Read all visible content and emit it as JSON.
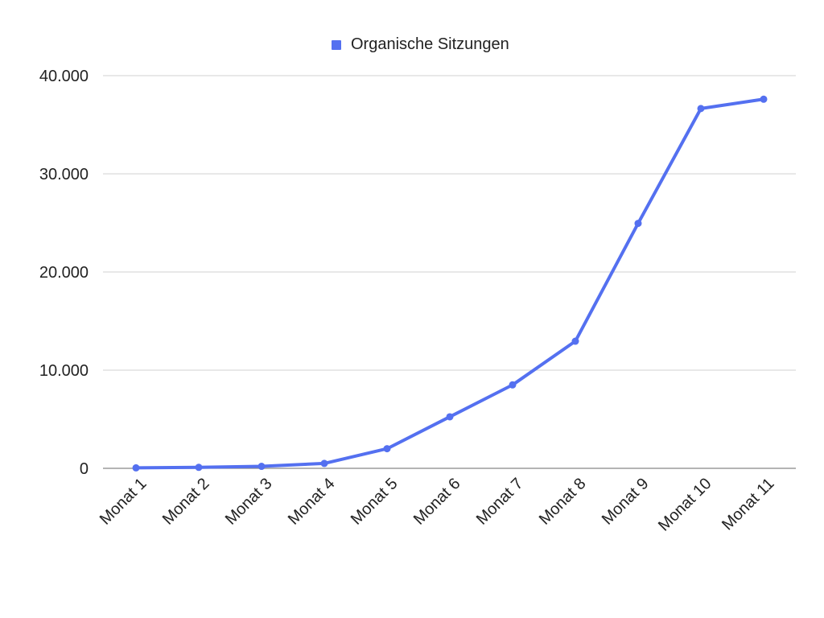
{
  "chart_data": {
    "type": "line",
    "title": "",
    "xlabel": "",
    "ylabel": "",
    "categories": [
      "Monat 1",
      "Monat 2",
      "Monat 3",
      "Monat 4",
      "Monat 5",
      "Monat 6",
      "Monat 7",
      "Monat 8",
      "Monat 9",
      "Monat 10",
      "Monat 11"
    ],
    "series": [
      {
        "name": "Organische Sitzungen",
        "color": "#5470f0",
        "values": [
          50,
          100,
          200,
          500,
          2000,
          5250,
          8500,
          12950,
          24950,
          36650,
          37600
        ]
      }
    ],
    "ylim": [
      0,
      40000
    ],
    "yticks": [
      0,
      10000,
      20000,
      30000,
      40000
    ],
    "ytick_labels": [
      "0",
      "10.000",
      "20.000",
      "30.000",
      "40.000"
    ],
    "grid": true,
    "legend_position": "top-center",
    "markers": true
  }
}
